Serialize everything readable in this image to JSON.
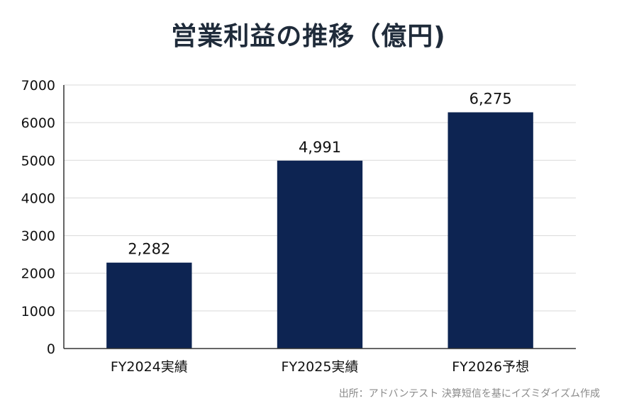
{
  "chart_data": {
    "type": "bar",
    "title": "営業利益の推移（億円)",
    "categories": [
      "FY2024実績",
      "FY2025実績",
      "FY2026予想"
    ],
    "values": [
      2282,
      4991,
      6275
    ],
    "data_labels": [
      "2,282",
      "4,991",
      "6,275"
    ],
    "yticks": [
      "0",
      "1000",
      "2000",
      "3000",
      "4000",
      "5000",
      "6000",
      "7000"
    ],
    "ylim": [
      0,
      7000
    ],
    "xlabel": "",
    "ylabel": "",
    "grid": true,
    "legend": "none",
    "bar_color": "#0d2452",
    "grid_color": "#d9d9d9",
    "axis_color": "#333333"
  },
  "source": "出所：アドバンテスト 決算短信を基にイズミダイズム作成"
}
